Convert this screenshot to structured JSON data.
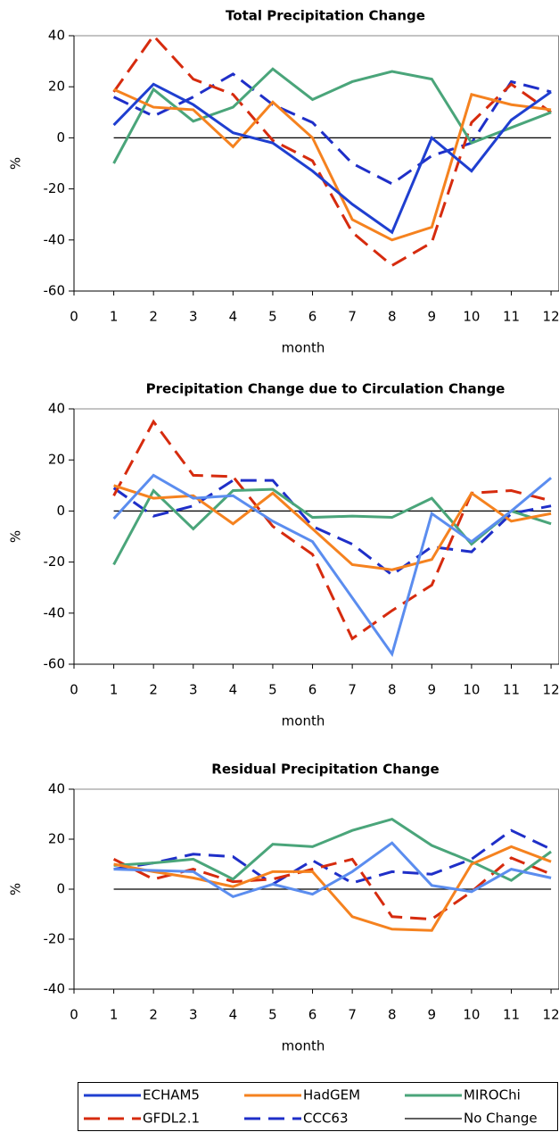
{
  "chart_data": [
    {
      "type": "line",
      "title": "Total Precipitation Change",
      "xlabel": "month",
      "ylabel": "%",
      "x": [
        1,
        2,
        3,
        4,
        5,
        6,
        7,
        8,
        9,
        10,
        11,
        12
      ],
      "xlim": [
        0,
        12.2
      ],
      "xticks": [
        0,
        1,
        2,
        3,
        4,
        5,
        6,
        7,
        8,
        9,
        10,
        11,
        12
      ],
      "ylim": [
        -60,
        40
      ],
      "yticks": [
        -60,
        -40,
        -20,
        0,
        20,
        40
      ],
      "series": [
        {
          "name": "ECHAM5",
          "color": "#1f3fd0",
          "dash": false,
          "values": [
            5,
            21,
            13,
            2,
            -2,
            -13,
            -26,
            -37,
            0,
            -13,
            7,
            18
          ]
        },
        {
          "name": "HadGEM",
          "color": "#f5821f",
          "dash": false,
          "values": [
            19,
            12,
            11,
            -3.5,
            14,
            0,
            -32,
            -40,
            -35,
            17,
            13,
            11
          ]
        },
        {
          "name": "MIROChi",
          "color": "#4aa57a",
          "dash": false,
          "values": [
            -10,
            19,
            6.5,
            12,
            27,
            15,
            22,
            26,
            23,
            -2,
            4,
            10
          ]
        },
        {
          "name": "GFDL2.1",
          "color": "#d62b0e",
          "dash": true,
          "values": [
            18,
            40,
            23,
            17,
            -1,
            -9,
            -37,
            -50,
            -41,
            6,
            21,
            10
          ]
        },
        {
          "name": "CCC63",
          "color": "#1f2fc8",
          "dash": true,
          "values": [
            16,
            8.5,
            16,
            25,
            13,
            6,
            -10,
            -18,
            -7,
            -2,
            22,
            18
          ]
        },
        {
          "name": "No Change",
          "color": "#000000",
          "dash": false,
          "values": [
            0,
            0,
            0,
            0,
            0,
            0,
            0,
            0,
            0,
            0,
            0,
            0
          ]
        }
      ]
    },
    {
      "type": "line",
      "title": "Precipitation Change due to Circulation Change",
      "xlabel": "month",
      "ylabel": "%",
      "x": [
        1,
        2,
        3,
        4,
        5,
        6,
        7,
        8,
        9,
        10,
        11,
        12
      ],
      "xlim": [
        0,
        12.2
      ],
      "xticks": [
        0,
        1,
        2,
        3,
        4,
        5,
        6,
        7,
        8,
        9,
        10,
        11,
        12
      ],
      "ylim": [
        -60,
        40
      ],
      "yticks": [
        -60,
        -40,
        -20,
        0,
        20,
        40
      ],
      "series": [
        {
          "color": "#5b8def",
          "dash": false,
          "values": [
            -3,
            14,
            5,
            6,
            -4,
            -12,
            -34,
            -56,
            -1,
            -12,
            0,
            13
          ]
        },
        {
          "color": "#f5821f",
          "dash": false,
          "values": [
            10,
            5,
            6,
            -5,
            7,
            -7,
            -21,
            -23,
            -19,
            7,
            -4,
            -1
          ]
        },
        {
          "color": "#4aa57a",
          "dash": false,
          "values": [
            -21,
            8,
            -7,
            8,
            8.5,
            -2.5,
            -2,
            -2.5,
            5,
            -13,
            0,
            -5
          ]
        },
        {
          "color": "#d62b0e",
          "dash": true,
          "values": [
            6,
            35,
            14,
            13.5,
            -6,
            -17,
            -50,
            -39,
            -29,
            7,
            8,
            4
          ]
        },
        {
          "color": "#1f2fc8",
          "dash": true,
          "values": [
            9,
            -2,
            2,
            12,
            12,
            -6,
            -13,
            -25,
            -14,
            -16,
            -1,
            2
          ]
        },
        {
          "color": "#000000",
          "dash": false,
          "values": [
            0,
            0,
            0,
            0,
            0,
            0,
            0,
            0,
            0,
            0,
            0,
            0
          ]
        }
      ]
    },
    {
      "type": "line",
      "title": "Residual Precipitation Change",
      "xlabel": "month",
      "ylabel": "%",
      "x": [
        1,
        2,
        3,
        4,
        5,
        6,
        7,
        8,
        9,
        10,
        11,
        12
      ],
      "xlim": [
        0,
        12.2
      ],
      "xticks": [
        0,
        1,
        2,
        3,
        4,
        5,
        6,
        7,
        8,
        9,
        10,
        11,
        12
      ],
      "ylim": [
        -40,
        40
      ],
      "yticks": [
        -40,
        -20,
        0,
        20,
        40
      ],
      "series": [
        {
          "color": "#5b8def",
          "dash": false,
          "values": [
            8,
            7.5,
            7,
            -3,
            2,
            -2,
            7,
            18.5,
            1.5,
            -1,
            8,
            4.5
          ]
        },
        {
          "color": "#f5821f",
          "dash": false,
          "values": [
            10,
            7,
            4.5,
            1,
            7,
            7,
            -11,
            -16,
            -16.5,
            10,
            17,
            11
          ]
        },
        {
          "color": "#4aa57a",
          "dash": false,
          "values": [
            9.5,
            10.5,
            12,
            4,
            18,
            17,
            23.5,
            28,
            17.5,
            11,
            3.5,
            15
          ]
        },
        {
          "color": "#d62b0e",
          "dash": true,
          "values": [
            12,
            4,
            8,
            3,
            4,
            8,
            12,
            -11,
            -12,
            -1,
            12.5,
            6
          ]
        },
        {
          "color": "#1f2fc8",
          "dash": true,
          "values": [
            8,
            10.5,
            14,
            13,
            2,
            11.5,
            2.5,
            7,
            6,
            12,
            23.5,
            16
          ]
        },
        {
          "color": "#000000",
          "dash": false,
          "values": [
            0,
            0,
            0,
            0,
            0,
            0,
            0,
            0,
            0,
            0,
            0,
            0
          ]
        }
      ]
    }
  ]
}
